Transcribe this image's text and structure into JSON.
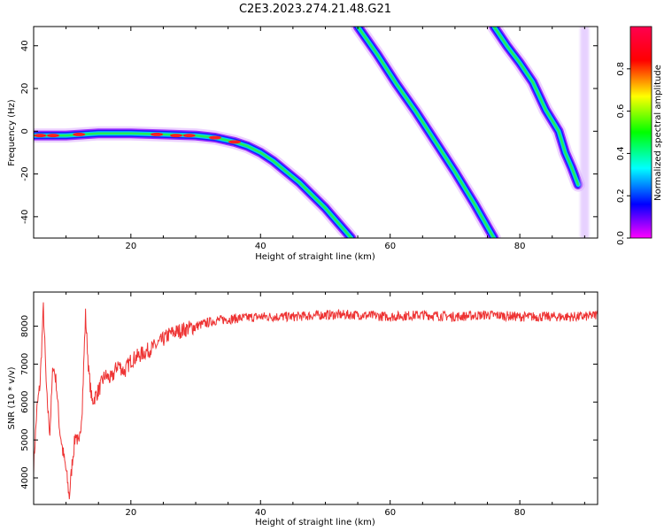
{
  "figure": {
    "title": "C2E3.2023.274.21.48.G21"
  },
  "chart_data": [
    {
      "type": "heatmap",
      "title": "",
      "xlabel": "Height of straight line (km)",
      "ylabel": "Frequency (Hz)",
      "xlim": [
        5,
        92
      ],
      "ylim": [
        -50,
        49
      ],
      "x_ticks": [
        20,
        40,
        60,
        80
      ],
      "y_ticks": [
        -40,
        -20,
        0,
        20,
        40
      ],
      "colorbar": {
        "label": "Normalized spectral amplitude",
        "range": [
          0,
          1
        ],
        "ticks": [
          0.0,
          0.2,
          0.4,
          0.6,
          0.8
        ],
        "colormap": "gist_rainbow_r"
      },
      "traces": [
        {
          "points": [
            [
              5,
              -2
            ],
            [
              10,
              -2
            ],
            [
              15,
              -1
            ],
            [
              20,
              -1
            ],
            [
              25,
              -1.5
            ],
            [
              30,
              -2
            ],
            [
              33,
              -3
            ],
            [
              36,
              -5
            ],
            [
              38,
              -7
            ],
            [
              40,
              -10
            ],
            [
              42,
              -14
            ],
            [
              44,
              -19
            ],
            [
              46,
              -24
            ],
            [
              48,
              -30
            ],
            [
              50,
              -36
            ],
            [
              52,
              -43
            ],
            [
              54,
              -50
            ]
          ]
        },
        {
          "points": [
            [
              55,
              49
            ],
            [
              58,
              36
            ],
            [
              61,
              22
            ],
            [
              64,
              9
            ],
            [
              67,
              -5
            ],
            [
              70,
              -19
            ],
            [
              73,
              -34
            ],
            [
              76,
              -50
            ]
          ]
        },
        {
          "points": [
            [
              76,
              49
            ],
            [
              78,
              40
            ],
            [
              80,
              32
            ],
            [
              82,
              23
            ],
            [
              84,
              10
            ],
            [
              86,
              0
            ],
            [
              87,
              -10
            ],
            [
              88,
              -17
            ],
            [
              89,
              -25
            ]
          ]
        }
      ],
      "grid": false
    },
    {
      "type": "line",
      "title": "",
      "xlabel": "Height of straight line (km)",
      "ylabel": "SNR (10 * v/v)",
      "xlim": [
        5,
        92
      ],
      "ylim": [
        3300,
        8900
      ],
      "x_ticks": [
        20,
        40,
        60,
        80
      ],
      "y_ticks": [
        4000,
        5000,
        6000,
        7000,
        8000
      ],
      "color": "#ee3333",
      "series": [
        {
          "x": [
            5,
            5.5,
            6,
            6.5,
            7,
            7.5,
            8,
            8.5,
            9,
            9.5,
            10,
            10.5,
            11,
            11.5,
            12,
            12.5,
            13,
            13.5,
            14,
            15,
            16,
            17,
            18,
            19,
            20,
            22,
            24,
            26,
            28,
            30,
            33,
            36,
            40,
            45,
            50,
            55,
            60,
            65,
            70,
            75,
            80,
            85,
            90,
            92
          ],
          "y": [
            4300,
            5800,
            6500,
            8500,
            6200,
            5200,
            7000,
            6500,
            5300,
            4700,
            4200,
            3500,
            4500,
            5200,
            4800,
            5900,
            8300,
            6800,
            6000,
            6300,
            6700,
            6600,
            7000,
            6800,
            7100,
            7300,
            7500,
            7800,
            7900,
            8000,
            8150,
            8200,
            8250,
            8250,
            8300,
            8300,
            8250,
            8300,
            8250,
            8300,
            8250,
            8250,
            8250,
            8300
          ]
        }
      ],
      "grid": false
    }
  ]
}
